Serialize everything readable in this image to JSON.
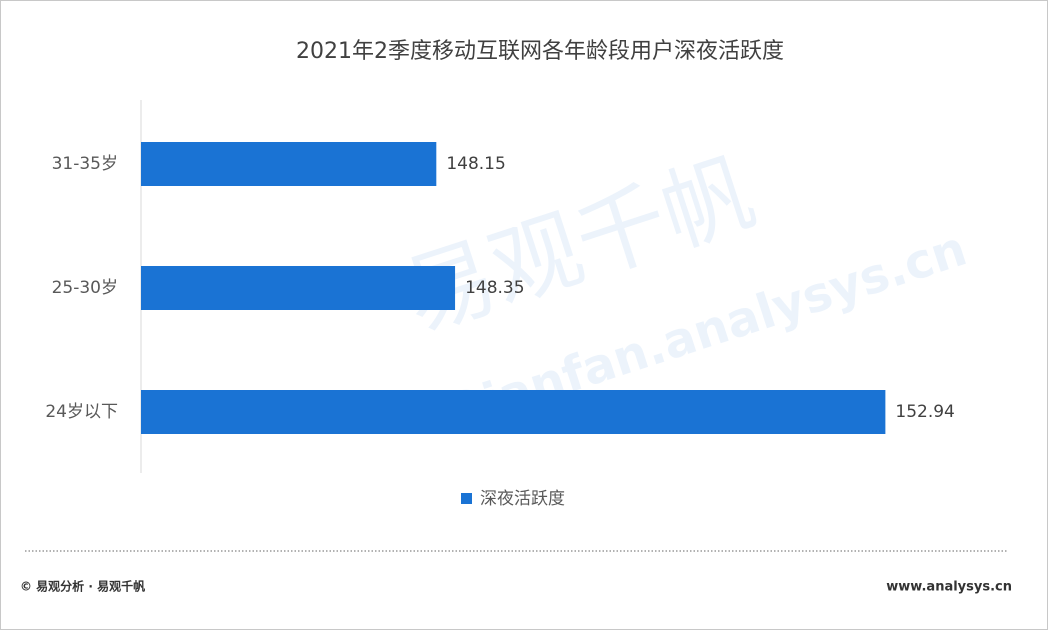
{
  "chart_data": {
    "type": "bar",
    "orientation": "horizontal",
    "title": "2021年2季度移动互联网各年龄段用户深夜活跃度",
    "categories": [
      "31-35岁",
      "25-30岁",
      "24岁以下"
    ],
    "series": [
      {
        "name": "深夜活跃度",
        "color": "#1a73d4",
        "values": [
          148.15,
          148.35,
          152.94
        ]
      }
    ],
    "xlim": [
      145,
      153
    ],
    "legend": "bottom"
  },
  "watermark": {
    "brand": "易观千帆",
    "site": "Qianfan.analysys.cn"
  },
  "footer": {
    "left": "© 易观分析 · 易观千帆",
    "right": "www.analysys.cn"
  }
}
